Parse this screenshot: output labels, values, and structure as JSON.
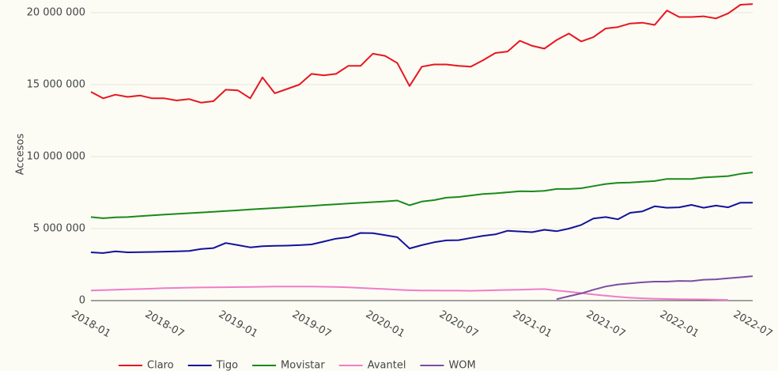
{
  "chart_data": {
    "type": "line",
    "y_label": "Accesos",
    "x": [
      "2018-01",
      "2018-02",
      "2018-03",
      "2018-04",
      "2018-05",
      "2018-06",
      "2018-07",
      "2018-08",
      "2018-09",
      "2018-10",
      "2018-11",
      "2018-12",
      "2019-01",
      "2019-02",
      "2019-03",
      "2019-04",
      "2019-05",
      "2019-06",
      "2019-07",
      "2019-08",
      "2019-09",
      "2019-10",
      "2019-11",
      "2019-12",
      "2020-01",
      "2020-02",
      "2020-03",
      "2020-04",
      "2020-05",
      "2020-06",
      "2020-07",
      "2020-08",
      "2020-09",
      "2020-10",
      "2020-11",
      "2020-12",
      "2021-01",
      "2021-02",
      "2021-03",
      "2021-04",
      "2021-05",
      "2021-06",
      "2021-07",
      "2021-08",
      "2021-09",
      "2021-10",
      "2021-11",
      "2021-12",
      "2022-01",
      "2022-02",
      "2022-03",
      "2022-04",
      "2022-05",
      "2022-06",
      "2022-07"
    ],
    "xticks": [
      "2018-01",
      "2018-07",
      "2019-01",
      "2019-07",
      "2020-01",
      "2020-07",
      "2021-01",
      "2021-07",
      "2022-01",
      "2022-07"
    ],
    "ylim": [
      -550000,
      20330000
    ],
    "yticks": [
      0,
      {
        "value": 5000000,
        "label": "5 000 000"
      },
      {
        "value": 10000000,
        "label": "10 000 000"
      },
      {
        "value": 15000000,
        "label": "15 000 000"
      },
      {
        "value": 20000000,
        "label": "20 000 000"
      }
    ],
    "grid": true,
    "legend": "bottom",
    "series": [
      {
        "name": "Claro",
        "color": "#e8161e",
        "values": [
          14500000,
          14050000,
          14300000,
          14150000,
          14250000,
          14050000,
          14050000,
          13900000,
          14000000,
          13750000,
          13850000,
          14650000,
          14600000,
          14050000,
          15500000,
          14400000,
          14700000,
          15000000,
          15750000,
          15650000,
          15750000,
          16300000,
          16300000,
          17150000,
          17000000,
          16500000,
          14900000,
          16250000,
          16400000,
          16400000,
          16300000,
          16250000,
          16700000,
          17200000,
          17300000,
          18050000,
          17700000,
          17500000,
          18100000,
          18550000,
          18000000,
          18300000,
          18900000,
          19000000,
          19250000,
          19300000,
          19150000,
          20150000,
          19700000,
          19700000,
          19750000,
          19600000,
          19950000,
          20550000,
          20600000
        ]
      },
      {
        "name": "Tigo",
        "color": "#12129a",
        "values": [
          3350000,
          3300000,
          3420000,
          3350000,
          3370000,
          3380000,
          3400000,
          3420000,
          3450000,
          3580000,
          3650000,
          4000000,
          3850000,
          3700000,
          3780000,
          3800000,
          3820000,
          3850000,
          3900000,
          4100000,
          4300000,
          4400000,
          4700000,
          4680000,
          4550000,
          4400000,
          3620000,
          3850000,
          4050000,
          4180000,
          4200000,
          4350000,
          4500000,
          4600000,
          4850000,
          4800000,
          4750000,
          4920000,
          4820000,
          5000000,
          5250000,
          5700000,
          5800000,
          5650000,
          6100000,
          6200000,
          6550000,
          6450000,
          6480000,
          6650000,
          6450000,
          6600000,
          6480000,
          6800000,
          6800000
        ]
      },
      {
        "name": "Movistar",
        "color": "#1a8a1a",
        "values": [
          5800000,
          5720000,
          5780000,
          5800000,
          5860000,
          5920000,
          5970000,
          6020000,
          6070000,
          6120000,
          6170000,
          6220000,
          6270000,
          6330000,
          6380000,
          6430000,
          6480000,
          6530000,
          6580000,
          6640000,
          6690000,
          6740000,
          6790000,
          6840000,
          6890000,
          6950000,
          6620000,
          6880000,
          6980000,
          7150000,
          7200000,
          7300000,
          7400000,
          7450000,
          7520000,
          7600000,
          7580000,
          7620000,
          7750000,
          7750000,
          7800000,
          7950000,
          8100000,
          8180000,
          8200000,
          8250000,
          8300000,
          8450000,
          8450000,
          8450000,
          8550000,
          8600000,
          8650000,
          8800000,
          8900000
        ]
      },
      {
        "name": "Avantel",
        "color": "#f07cc8",
        "values": [
          700000,
          730000,
          760000,
          780000,
          800000,
          830000,
          860000,
          880000,
          900000,
          910000,
          920000,
          930000,
          940000,
          950000,
          960000,
          970000,
          980000,
          980000,
          970000,
          960000,
          950000,
          920000,
          880000,
          840000,
          800000,
          760000,
          720000,
          700000,
          700000,
          690000,
          690000,
          680000,
          700000,
          720000,
          740000,
          760000,
          780000,
          800000,
          700000,
          620000,
          520000,
          420000,
          340000,
          260000,
          200000,
          160000,
          130000,
          110000,
          100000,
          90000,
          80000,
          60000,
          50000,
          null,
          null
        ]
      },
      {
        "name": "WOM",
        "color": "#7d4da0",
        "values": [
          null,
          null,
          null,
          null,
          null,
          null,
          null,
          null,
          null,
          null,
          null,
          null,
          null,
          null,
          null,
          null,
          null,
          null,
          null,
          null,
          null,
          null,
          null,
          null,
          null,
          null,
          null,
          null,
          null,
          null,
          null,
          null,
          null,
          null,
          null,
          null,
          null,
          null,
          100000,
          300000,
          500000,
          750000,
          980000,
          1120000,
          1200000,
          1270000,
          1320000,
          1320000,
          1370000,
          1350000,
          1450000,
          1480000,
          1550000,
          1620000,
          1700000
        ]
      }
    ]
  }
}
